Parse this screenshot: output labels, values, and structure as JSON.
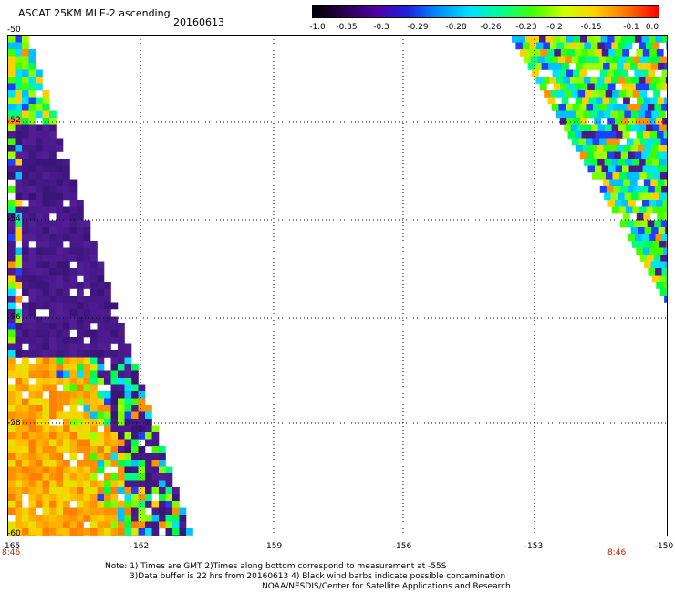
{
  "header": {
    "title": "ASCAT 25KM MLE-2 ascending",
    "date": "20160613"
  },
  "colorbar": {
    "labels": [
      "-1.0",
      "-0.35",
      "-0.3",
      "-0.29",
      "-0.28",
      "-0.26",
      "-0.23",
      "-0.2",
      "-0.15",
      "-0.1",
      "0.0"
    ],
    "colors": [
      "#000000",
      "#2a0050",
      "#5000a0",
      "#2020e0",
      "#0090ff",
      "#00e0ff",
      "#00ff90",
      "#40ff00",
      "#d0ff00",
      "#ffd000",
      "#ff7000",
      "#ff0000"
    ]
  },
  "map": {
    "lat_labels": [
      "-50",
      "-52",
      "-54",
      "-56",
      "-58",
      "-60"
    ],
    "lon_labels": [
      "-165",
      "-162",
      "-159",
      "-156",
      "-153",
      "-150"
    ],
    "time_labels": {
      "left": "8:46",
      "right": "8:46"
    }
  },
  "notes": {
    "line1": "Note: 1) Times are GMT 2)Times along bottom correspond to measurement at -55S",
    "line2": "3)Data buffer is 22 hrs from 20160613 4) Black wind barbs indicate possible contamination",
    "line3": "NOAA/NESDIS/Center for Satellite Applications and Research"
  }
}
